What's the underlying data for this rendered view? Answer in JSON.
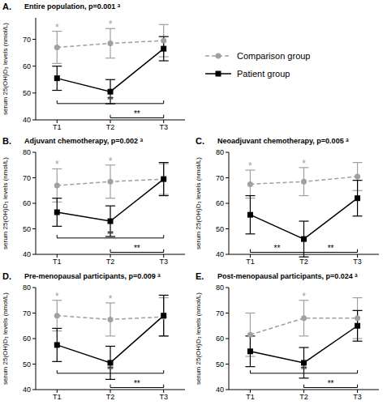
{
  "chart_data": [
    {
      "type": "line",
      "panel": "A.",
      "title": "Entire population, p=0.001 ᵃ",
      "y_label": "serum 25(OH)D₃ levels (nmol/L)",
      "categories": [
        "T1",
        "T2",
        "T3"
      ],
      "ylim": [
        40,
        78
      ],
      "yticks": [
        40,
        50,
        60,
        70
      ],
      "legend": "right",
      "series": [
        {
          "name": "Comparison group",
          "color": "#a0a0a0",
          "marker": "circle",
          "line_style": "dashed",
          "values": [
            67,
            68.5,
            69.5
          ],
          "error": [
            6,
            5.5,
            6
          ]
        },
        {
          "name": "Patient group",
          "color": "#000000",
          "marker": "square",
          "line_style": "solid",
          "values": [
            55.5,
            50.5,
            66.5
          ],
          "error": [
            4.5,
            4.5,
            4.5
          ]
        }
      ],
      "annotations": [
        {
          "x": "T1",
          "series": "Comparison group",
          "label": "*"
        },
        {
          "x": "T2",
          "series": "Comparison group",
          "label": "*"
        }
      ],
      "comparisons": [
        {
          "from": "T2",
          "to": "T3",
          "label": "**"
        },
        {
          "from": "T1",
          "to": "T3",
          "label": "**"
        }
      ]
    },
    {
      "type": "line",
      "panel": "B.",
      "title": "Adjuvant chemotherapy, p=0.002 ᵃ",
      "y_label": "serum 25(OH)D₃ levels (nmol/L)",
      "categories": [
        "T1",
        "T2",
        "T3"
      ],
      "ylim": [
        40,
        80
      ],
      "yticks": [
        40,
        50,
        60,
        70,
        80
      ],
      "series": [
        {
          "name": "Comparison group",
          "color": "#a0a0a0",
          "marker": "circle",
          "line_style": "dashed",
          "values": [
            67,
            68.5,
            69.5
          ],
          "error": [
            6.5,
            6.5,
            6
          ]
        },
        {
          "name": "Patient group",
          "color": "#000000",
          "marker": "square",
          "line_style": "solid",
          "values": [
            56.5,
            53,
            69.5
          ],
          "error": [
            5.5,
            6,
            6.5
          ]
        }
      ],
      "annotations": [
        {
          "x": "T1",
          "series": "Comparison group",
          "label": "*"
        },
        {
          "x": "T2",
          "series": "Comparison group",
          "label": "*"
        }
      ],
      "comparisons": [
        {
          "from": "T2",
          "to": "T3",
          "label": "**"
        },
        {
          "from": "T1",
          "to": "T3",
          "label": "**"
        }
      ]
    },
    {
      "type": "line",
      "panel": "C.",
      "title": "Neoadjuvant chemotherapy, p=0.005 ᵃ",
      "y_label": "serum 25(OH)D₃ levels (nmol/L)",
      "categories": [
        "T1",
        "T2",
        "T3"
      ],
      "ylim": [
        40,
        80
      ],
      "yticks": [
        40,
        50,
        60,
        70,
        80
      ],
      "series": [
        {
          "name": "Comparison group",
          "color": "#a0a0a0",
          "marker": "circle",
          "line_style": "dashed",
          "values": [
            67.5,
            68.5,
            70.5
          ],
          "error": [
            5.5,
            5.5,
            5.5
          ]
        },
        {
          "name": "Patient group",
          "color": "#000000",
          "marker": "square",
          "line_style": "solid",
          "values": [
            55.5,
            46,
            62
          ],
          "error": [
            7.5,
            7,
            7
          ]
        }
      ],
      "annotations": [
        {
          "x": "T1",
          "series": "Comparison group",
          "label": "*"
        },
        {
          "x": "T2",
          "series": "Comparison group",
          "label": "*"
        }
      ],
      "comparisons": [
        {
          "from": "T1",
          "to": "T2",
          "label": "**"
        },
        {
          "from": "T2",
          "to": "T3",
          "label": "**"
        }
      ]
    },
    {
      "type": "line",
      "panel": "D.",
      "title": "Pre-menopausal participants, p=0.009 ᵃ",
      "y_label": "serum 25(OH)D₃ levels (nmol/L)",
      "categories": [
        "T1",
        "T2",
        "T3"
      ],
      "ylim": [
        40,
        80
      ],
      "yticks": [
        40,
        50,
        60,
        70,
        80
      ],
      "series": [
        {
          "name": "Comparison group",
          "color": "#a0a0a0",
          "marker": "circle",
          "line_style": "dashed",
          "values": [
            69,
            67.5,
            68.5
          ],
          "error": [
            6,
            6.5,
            7.5
          ]
        },
        {
          "name": "Patient group",
          "color": "#000000",
          "marker": "square",
          "line_style": "solid",
          "values": [
            57.5,
            50.5,
            69
          ],
          "error": [
            6.5,
            6.5,
            8
          ]
        }
      ],
      "annotations": [
        {
          "x": "T1",
          "series": "Comparison group",
          "label": "*"
        },
        {
          "x": "T2",
          "series": "Comparison group",
          "label": "*"
        }
      ],
      "comparisons": [
        {
          "from": "T2",
          "to": "T3",
          "label": "**"
        },
        {
          "from": "T1",
          "to": "T3",
          "label": "**"
        }
      ]
    },
    {
      "type": "line",
      "panel": "E.",
      "title": "Post-menopausal participants, p=0.024 ᵃ",
      "y_label": "serum 25(OH)D₃ levels (nmol/L)",
      "categories": [
        "T1",
        "T2",
        "T3"
      ],
      "ylim": [
        40,
        80
      ],
      "yticks": [
        40,
        50,
        60,
        70,
        80
      ],
      "series": [
        {
          "name": "Comparison group",
          "color": "#a0a0a0",
          "marker": "circle",
          "line_style": "dashed",
          "values": [
            61.5,
            68,
            68
          ],
          "error": [
            8.5,
            7,
            8
          ]
        },
        {
          "name": "Patient group",
          "color": "#000000",
          "marker": "square",
          "line_style": "solid",
          "values": [
            55,
            50.5,
            65
          ],
          "error": [
            6,
            6,
            6
          ]
        }
      ],
      "annotations": [
        {
          "x": "T2",
          "series": "Comparison group",
          "label": "*"
        }
      ],
      "comparisons": [
        {
          "from": "T2",
          "to": "T3",
          "label": "**"
        },
        {
          "from": "T1",
          "to": "T3",
          "label": "**"
        }
      ]
    }
  ]
}
